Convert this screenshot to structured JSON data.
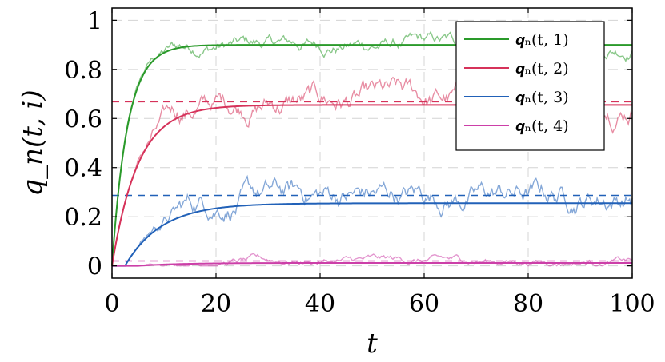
{
  "chart_data": {
    "type": "line",
    "xlabel": "t",
    "ylabel": "q_n(t, i)",
    "xlim": [
      0,
      100
    ],
    "ylim": [
      -0.05,
      1.05
    ],
    "xticks": [
      0,
      20,
      40,
      60,
      80,
      100
    ],
    "xtick_labels": [
      "0",
      "20",
      "40",
      "60",
      "80",
      "100"
    ],
    "yticks": [
      0,
      0.2,
      0.4,
      0.6,
      0.8,
      1
    ],
    "ytick_labels": [
      "0",
      "0.2",
      "0.4",
      "0.6",
      "0.8",
      "1"
    ],
    "grid": true,
    "legend_position": "top-right",
    "series": [
      {
        "name": "q_n(t, 1)",
        "legend_label": "𝒒ₙ(t, 1)",
        "color": "#2a9a2a",
        "limit": 0.9,
        "tau": 3.0,
        "delay": 0,
        "noise": 0.012,
        "dashed_level": null
      },
      {
        "name": "q_n(t, 2)",
        "legend_label": "𝒒ₙ(t, 2)",
        "color": "#d6325a",
        "limit": 0.655,
        "tau": 5.0,
        "delay": 0,
        "noise": 0.02,
        "dashed_level": 0.668
      },
      {
        "name": "q_n(t, 3)",
        "legend_label": "𝒒ₙ(t, 3)",
        "color": "#2161b8",
        "limit": 0.255,
        "tau": 7.0,
        "delay": 2.5,
        "noise": 0.02,
        "dashed_level": 0.287
      },
      {
        "name": "q_n(t, 4)",
        "legend_label": "𝒒ₙ(t, 4)",
        "color": "#cc3fa8",
        "limit": 0.012,
        "tau": 8.0,
        "delay": 5.0,
        "noise": 0.006,
        "dashed_level": 0.02
      }
    ]
  }
}
